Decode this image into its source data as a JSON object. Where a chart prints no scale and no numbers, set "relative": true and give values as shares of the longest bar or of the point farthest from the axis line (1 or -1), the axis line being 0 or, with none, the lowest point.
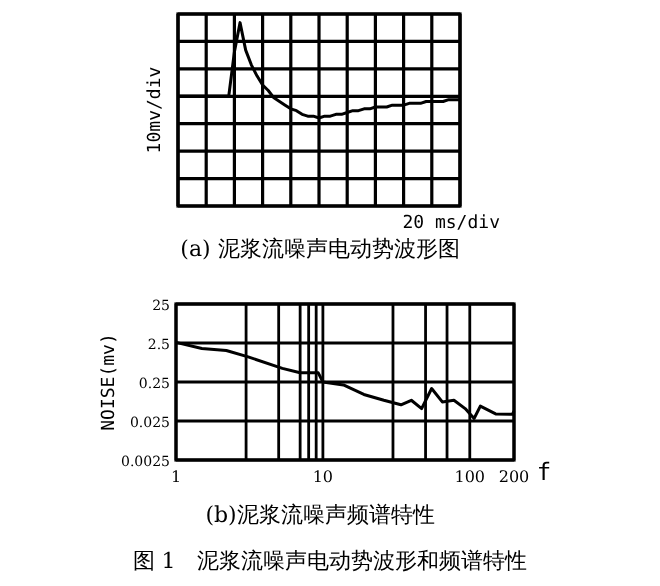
{
  "chart_data": [
    {
      "type": "line",
      "title": "(a) 泥浆流噪声电动势波形图",
      "xlabel": "20 ms/div",
      "ylabel": "10mv/div",
      "relative": true,
      "grid": true,
      "categories": [
        null,
        null,
        null,
        null,
        null,
        null,
        null,
        null,
        null,
        null,
        null,
        null,
        null,
        null,
        null,
        null,
        null,
        null,
        null,
        null,
        null,
        null,
        null,
        null,
        null,
        null,
        null,
        null,
        null,
        null,
        null,
        null,
        null,
        null,
        null,
        null,
        null,
        null,
        null,
        null,
        null,
        null,
        null,
        null,
        null,
        null,
        null,
        null,
        null,
        null,
        null
      ],
      "series": [
        {
          "color": "#000000",
          "values": [
            0.6,
            0.6,
            0.6,
            0.6,
            0.6,
            0.6,
            0.6,
            0.6,
            0.6,
            0.6,
            0.84,
            1,
            0.85,
            0.77,
            0.71,
            0.66,
            0.63,
            0.59,
            0.57,
            0.55,
            0.53,
            0.52,
            0.5,
            0.49,
            0.49,
            0.48,
            0.49,
            0.49,
            0.5,
            0.5,
            0.51,
            0.52,
            0.52,
            0.53,
            0.53,
            0.54,
            0.54,
            0.54,
            0.55,
            0.55,
            0.55,
            0.56,
            0.56,
            0.56,
            0.57,
            0.57,
            0.57,
            0.57,
            0.58,
            0.58,
            0.58
          ]
        }
      ]
    },
    {
      "type": "line",
      "title": "(b)泥浆流噪声频谱特性",
      "xlabel": "f",
      "ylabel": "NOISE(mv)",
      "log": "xy",
      "grid": true,
      "annotations": [
        "图 1　泥浆流噪声电动势波形和频谱特性"
      ],
      "xlim": [
        1,
        200
      ],
      "ylim": [
        0.0025,
        25
      ],
      "xticks": [
        1,
        {
          "value": 3,
          "label": null
        },
        {
          "value": 5,
          "label": null
        },
        {
          "value": 7,
          "label": null
        },
        {
          "value": 8,
          "label": null
        },
        {
          "value": 9,
          "label": null
        },
        10,
        {
          "value": 30,
          "label": null
        },
        {
          "value": 50,
          "label": null
        },
        {
          "value": 70,
          "label": null
        },
        100,
        200
      ],
      "yticks": [
        0.0025,
        0.025,
        0.25,
        2.5,
        25
      ],
      "x": [
        1,
        1.5,
        2.2,
        3.1,
        5.3,
        7,
        9.3,
        10,
        13.8,
        19,
        26,
        34,
        40,
        47,
        55,
        65,
        78,
        93,
        107,
        118,
        150,
        195,
        200
      ],
      "series": [
        {
          "color": "#000000",
          "values": [
            2.6,
            1.8,
            1.6,
            1.1,
            0.56,
            0.43,
            0.43,
            0.25,
            0.21,
            0.12,
            0.085,
            0.065,
            0.085,
            0.052,
            0.17,
            0.077,
            0.085,
            0.052,
            0.029,
            0.06,
            0.038,
            0.037,
            0.045
          ]
        }
      ]
    }
  ]
}
